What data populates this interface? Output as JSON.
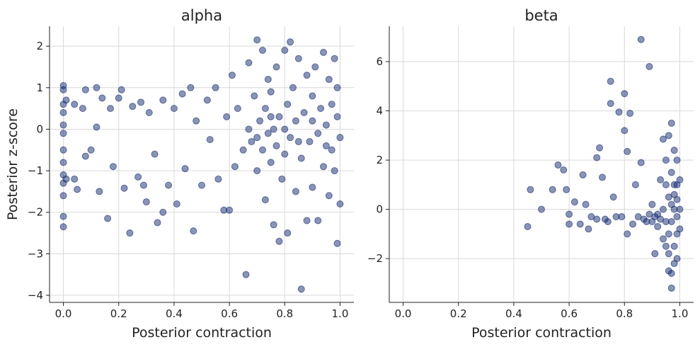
{
  "chart_data": [
    {
      "type": "scatter",
      "title": "alpha",
      "xlabel": "Posterior contraction",
      "ylabel": "Posterior z-score",
      "color": "#132a70",
      "grid": true,
      "xlim": [
        -0.05,
        1.05
      ],
      "ylim": [
        -4.17,
        2.48
      ],
      "xticks": [
        {
          "value": 0,
          "label": "0.0"
        },
        {
          "value": 0.2,
          "label": "0.2"
        },
        {
          "value": 0.4,
          "label": "0.4"
        },
        {
          "value": 0.6,
          "label": "0.6"
        },
        {
          "value": 0.8,
          "label": "0.8"
        },
        {
          "value": 1,
          "label": "1.0"
        }
      ],
      "yticks": [
        {
          "value": -4,
          "label": "−4"
        },
        {
          "value": -3,
          "label": "−3"
        },
        {
          "value": -2,
          "label": "−2"
        },
        {
          "value": -1,
          "label": "−1"
        },
        0,
        1,
        2
      ],
      "x": [
        0,
        0,
        0,
        0,
        0,
        0,
        0,
        0,
        0,
        0,
        0,
        0,
        0,
        0.01,
        0.01,
        0.04,
        0.05,
        0.04,
        0.07,
        0.08,
        0.08,
        0.1,
        0.12,
        0.12,
        0.13,
        0.14,
        0.16,
        0.17,
        0.18,
        0.2,
        0.21,
        0.22,
        0.24,
        0.25,
        0.27,
        0.28,
        0.29,
        0.3,
        0.31,
        0.33,
        0.34,
        0.36,
        0.36,
        0.38,
        0.4,
        0.41,
        0.43,
        0.44,
        0.46,
        0.47,
        0.48,
        0.5,
        0.52,
        0.53,
        0.55,
        0.56,
        0.58,
        0.59,
        0.6,
        0.61,
        0.62,
        0.63,
        0.66,
        0.67,
        0.68,
        0.69,
        0.7,
        0.7,
        0.71,
        0.72,
        0.72,
        0.73,
        0.73,
        0.74,
        0.74,
        0.75,
        0.75,
        0.76,
        0.76,
        0.77,
        0.77,
        0.78,
        0.78,
        0.79,
        0.8,
        0.8,
        0.81,
        0.81,
        0.82,
        0.82,
        0.83,
        0.84,
        0.84,
        0.85,
        0.86,
        0.86,
        0.87,
        0.88,
        0.88,
        0.89,
        0.9,
        0.9,
        0.91,
        0.92,
        0.92,
        0.93,
        0.94,
        0.94,
        0.95,
        0.96,
        0.96,
        0.97,
        0.97,
        0.98,
        0.98,
        0.99,
        0.99,
        0.99,
        1.0,
        1.0,
        0.7,
        0.75,
        0.8,
        0.85,
        0.9,
        0.95,
        0.65,
        0.67
      ],
      "values": [
        1.05,
        0.95,
        0.6,
        0.4,
        0.1,
        -0.1,
        -0.5,
        -0.8,
        -1.1,
        -1.3,
        -1.6,
        -2.1,
        -2.35,
        0.7,
        -1.2,
        0.6,
        -1.45,
        -1.2,
        0.5,
        0.95,
        -0.65,
        -0.5,
        0.05,
        1.0,
        -1.5,
        0.75,
        -2.15,
        0.5,
        -0.9,
        0.75,
        0.95,
        -1.42,
        -2.5,
        0.55,
        -1.15,
        0.65,
        -1.35,
        -1.75,
        0.4,
        -0.6,
        -2.25,
        -2.0,
        0.7,
        -1.35,
        0.5,
        -1.8,
        0.85,
        -0.95,
        1.0,
        -2.45,
        0.2,
        -1.35,
        0.7,
        -0.25,
        1.0,
        -1.2,
        -1.95,
        0.3,
        -1.95,
        1.3,
        -0.9,
        0.5,
        -3.5,
        1.6,
        -0.3,
        0.8,
        2.15,
        -1.0,
        0.2,
        -0.5,
        1.9,
        0.5,
        -1.7,
        -0.1,
        1.2,
        -0.8,
        0.9,
        -2.3,
        0.0,
        1.5,
        -0.4,
        -2.7,
        0.3,
        -1.2,
        1.9,
        -0.6,
        0.6,
        -2.5,
        2.1,
        -0.2,
        1.0,
        -1.5,
        0.2,
        1.7,
        -3.85,
        -0.7,
        0.4,
        1.3,
        -2.2,
        -0.3,
        0.8,
        -1.4,
        1.5,
        -0.1,
        -2.2,
        0.5,
        1.85,
        -0.9,
        0.1,
        1.2,
        -1.6,
        0.6,
        -0.5,
        1.7,
        -1.0,
        0.3,
        -2.75,
        1.0,
        -0.2,
        -1.8,
        -0.2,
        0.3,
        0.0,
        -0.3,
        0.2,
        -0.4,
        -0.5,
        0.0
      ]
    },
    {
      "type": "scatter",
      "title": "beta",
      "xlabel": "Posterior contraction",
      "color": "#132a70",
      "grid": true,
      "xlim": [
        -0.05,
        1.05
      ],
      "ylim": [
        -3.78,
        7.44
      ],
      "xticks": [
        {
          "value": 0,
          "label": "0.0"
        },
        {
          "value": 0.2,
          "label": "0.2"
        },
        {
          "value": 0.4,
          "label": "0.4"
        },
        {
          "value": 0.6,
          "label": "0.6"
        },
        {
          "value": 0.8,
          "label": "0.8"
        },
        {
          "value": 1,
          "label": "1.0"
        }
      ],
      "yticks": [
        {
          "value": -2,
          "label": "−2"
        },
        0,
        2,
        4,
        6
      ],
      "x": [
        0.45,
        0.46,
        0.5,
        0.54,
        0.56,
        0.58,
        0.59,
        0.6,
        0.6,
        0.62,
        0.64,
        0.65,
        0.66,
        0.67,
        0.68,
        0.7,
        0.71,
        0.72,
        0.74,
        0.75,
        0.75,
        0.76,
        0.78,
        0.79,
        0.8,
        0.8,
        0.81,
        0.81,
        0.82,
        0.83,
        0.84,
        0.86,
        0.86,
        0.88,
        0.89,
        0.9,
        0.91,
        0.92,
        0.93,
        0.94,
        0.95,
        0.95,
        0.96,
        0.96,
        0.97,
        0.97,
        0.98,
        0.98,
        0.99,
        0.99,
        0.85,
        0.87,
        0.89,
        0.9,
        0.91,
        0.92,
        0.93,
        0.94,
        0.95,
        0.96,
        0.96,
        0.97,
        0.97,
        0.97,
        0.98,
        0.98,
        0.98,
        0.98,
        0.99,
        0.99,
        0.99,
        0.99,
        1.0,
        1.0,
        1.0,
        0.96,
        0.97,
        0.95,
        0.94,
        0.77,
        0.73,
        0.7
      ],
      "values": [
        -0.7,
        0.8,
        0.0,
        0.8,
        1.8,
        1.6,
        0.8,
        -0.6,
        -0.2,
        0.3,
        -0.6,
        1.4,
        0.2,
        -0.8,
        -0.3,
        2.1,
        2.5,
        1.3,
        -0.5,
        5.2,
        4.3,
        0.5,
        3.95,
        -0.3,
        4.7,
        3.2,
        2.35,
        -1.0,
        3.9,
        -0.6,
        1.0,
        6.9,
        1.9,
        -0.5,
        5.8,
        0.2,
        -1.8,
        -0.7,
        1.2,
        2.85,
        -1.5,
        2.0,
        -2.5,
        3.0,
        3.5,
        -3.2,
        2.4,
        -2.2,
        1.0,
        -1.0,
        -0.3,
        -0.4,
        -0.2,
        -0.5,
        -0.3,
        -0.2,
        -0.4,
        0.0,
        -0.5,
        0.5,
        -1.0,
        1.5,
        0.2,
        -0.5,
        1.0,
        0.0,
        -1.5,
        0.6,
        -0.3,
        0.4,
        2.0,
        -2.0,
        0.0,
        1.2,
        -0.8,
        -1.8,
        -2.6,
        1.0,
        -1.2,
        -0.3,
        -0.4,
        -0.4
      ]
    }
  ]
}
